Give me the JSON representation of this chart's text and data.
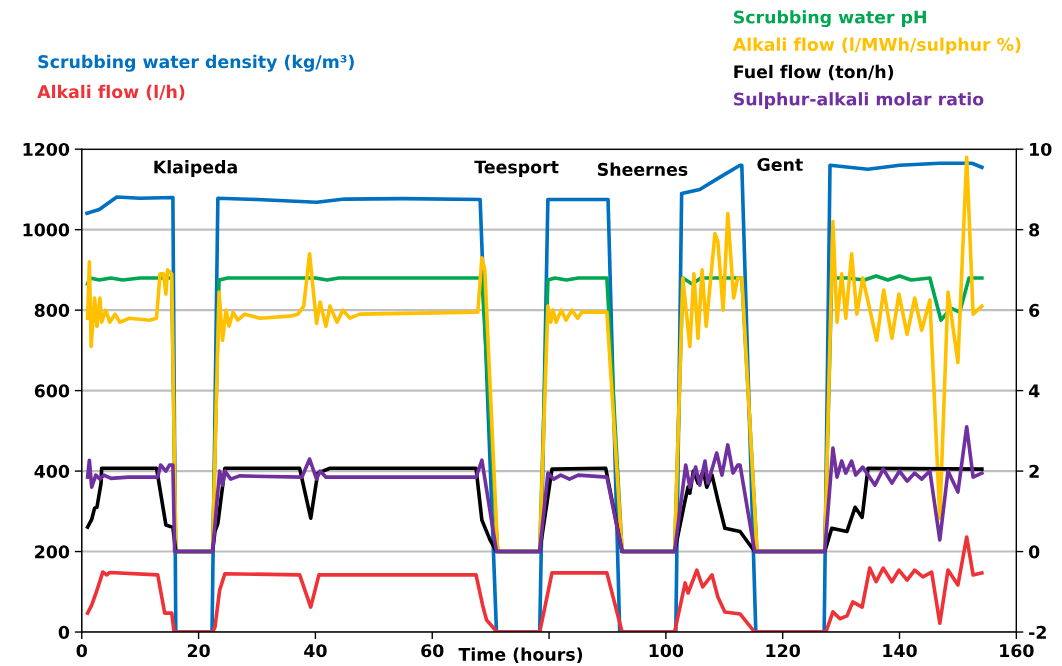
{
  "chart_data": {
    "type": "line",
    "xlabel": "Time (hours)",
    "xlim": [
      0,
      160
    ],
    "xticks": [
      0,
      20,
      40,
      60,
      {
        "value": 80,
        "label": null
      },
      100,
      120,
      140,
      160
    ],
    "ylim": [
      0,
      1200
    ],
    "yticks": [
      0,
      200,
      400,
      600,
      800,
      1000,
      1200
    ],
    "y2lim": [
      -2,
      10
    ],
    "y2ticks": [
      -2,
      0,
      2,
      4,
      6,
      8,
      10
    ],
    "grid": "y",
    "line_style": "solid",
    "marker": "none",
    "annotations": [
      "Klaipeda",
      "Teesport",
      "Sheernes",
      "Gent"
    ],
    "series": [
      {
        "name": "Scrubbing water density (kg/m³)",
        "color": "#0070c0",
        "axis": "y",
        "x": [
          0.9,
          3.0,
          6.0,
          10,
          15.6,
          16.1,
          22.3,
          23.3,
          30,
          40.2,
          45,
          55,
          68.2,
          71.0,
          78.4,
          79.8,
          90.1,
          92.1,
          101.7,
          102.7,
          105.8,
          109.2,
          112.7,
          113.0,
          115.4,
          127.1,
          128.1,
          134.6,
          140,
          146.9,
          152.4,
          154.1
        ],
        "values": [
          1041,
          1050,
          1081,
          1078,
          1080,
          0,
          0,
          1078,
          1075,
          1068,
          1076,
          1077,
          1075,
          0,
          0,
          1075,
          1075,
          0,
          0,
          1090,
          1100,
          1130,
          1160,
          1160,
          0,
          0,
          1160,
          1150,
          1160,
          1165,
          1165,
          1155
        ]
      },
      {
        "name": "Alkali flow (l/h)",
        "color": "#ee3338",
        "axis": "y",
        "x": [
          1.0,
          1.7,
          2.6,
          3.6,
          4.3,
          4.8,
          13.0,
          14.2,
          15.4,
          15.8,
          22.4,
          22.8,
          23.6,
          24.5,
          37.3,
          39.2,
          40.6,
          67.5,
          68.7,
          69.3,
          71.1,
          78.4,
          80.5,
          89.9,
          92.5,
          101.5,
          103.3,
          103.8,
          105.3,
          106.3,
          107.9,
          108.9,
          110.1,
          112.7,
          115.2,
          127.4,
          128.6,
          129.8,
          131.0,
          132.0,
          133.6,
          134.9,
          136.0,
          137.2,
          138.7,
          139.9,
          141.3,
          142.6,
          144.0,
          145.5,
          146.9,
          148.3,
          150.0,
          151.5,
          152.6,
          154.1
        ],
        "values": [
          47,
          67,
          104,
          149,
          142,
          148,
          142,
          47,
          47,
          0,
          0,
          12,
          104,
          145,
          142,
          62,
          142,
          142,
          62,
          30,
          0,
          0,
          147,
          147,
          0,
          0,
          122,
          97,
          154,
          112,
          142,
          87,
          50,
          45,
          0,
          0,
          50,
          33,
          40,
          75,
          62,
          159,
          125,
          159,
          125,
          154,
          129,
          154,
          137,
          149,
          22,
          154,
          117,
          236,
          142,
          147
        ]
      },
      {
        "name": "Scrubbing water pH",
        "color": "#00a650",
        "axis": "y2",
        "x": [
          1.0,
          1.4,
          3,
          5,
          7,
          10,
          15.4,
          16.1,
          22.4,
          23.5,
          25,
          30,
          40,
          42,
          44,
          68.5,
          71.2,
          78.4,
          79.8,
          81,
          83,
          85,
          89.9,
          92.5,
          101.5,
          102.9,
          104.5,
          106,
          113,
          115.6,
          127.2,
          128.4,
          131,
          134,
          136,
          138,
          140,
          142,
          145.2,
          147.1,
          148.8,
          150.3,
          151.9,
          154.1
        ],
        "values": [
          6.65,
          6.8,
          6.75,
          6.8,
          6.75,
          6.8,
          6.8,
          0,
          0,
          6.75,
          6.8,
          6.8,
          6.8,
          6.75,
          6.8,
          6.8,
          0,
          0,
          6.75,
          6.8,
          6.75,
          6.8,
          6.8,
          0,
          0,
          6.8,
          6.65,
          6.8,
          6.8,
          0,
          0,
          6.8,
          6.8,
          6.75,
          6.85,
          6.75,
          6.85,
          6.75,
          6.8,
          5.75,
          6.05,
          5.95,
          6.8,
          6.8
        ]
      },
      {
        "name": "Alkali flow (l/MWh/sulphur %)",
        "color": "#ffc000",
        "axis": "y2",
        "x": [
          1.0,
          1.3,
          1.6,
          2.2,
          2.6,
          3.1,
          3.4,
          4.1,
          4.8,
          5.7,
          6.5,
          8.2,
          11.6,
          12.8,
          13.4,
          14.0,
          14.4,
          14.7,
          15.4,
          16.1,
          22.4,
          23.5,
          24.1,
          24.7,
          25.2,
          25.9,
          26.7,
          27.9,
          30.5,
          35.6,
          37,
          38,
          39,
          40.2,
          40.8,
          41.8,
          42.5,
          43.7,
          44.7,
          45.9,
          47.6,
          67.8,
          68.5,
          69.0,
          71.2,
          78.4,
          79.8,
          80.3,
          80.7,
          81.2,
          82.1,
          82.9,
          83.9,
          84.9,
          85.6,
          89.9,
          92.5,
          101.5,
          102.9,
          104.1,
          104.8,
          105.5,
          106.2,
          106.9,
          108.4,
          108.9,
          109.8,
          110.6,
          111.6,
          112.3,
          113.0,
          115.6,
          127.2,
          128.6,
          129.3,
          130.1,
          130.8,
          131.8,
          132.7,
          133.7,
          136.1,
          137.3,
          138.7,
          139.9,
          141.3,
          142.6,
          143.8,
          145.2,
          146.9,
          148.3,
          150.0,
          151.5,
          152.6,
          154.1
        ],
        "values": [
          5.8,
          7.2,
          5.1,
          6.3,
          5.6,
          6.3,
          5.7,
          6.0,
          5.7,
          5.9,
          5.7,
          5.8,
          5.75,
          5.8,
          6.9,
          6.9,
          6.4,
          7.0,
          6.9,
          0,
          0,
          6.45,
          5.25,
          6.0,
          5.6,
          5.95,
          5.75,
          5.9,
          5.8,
          5.85,
          5.9,
          6.1,
          7.4,
          5.67,
          6.2,
          5.6,
          6.1,
          5.7,
          6.0,
          5.8,
          5.9,
          5.95,
          7.3,
          7.0,
          0,
          0,
          6.1,
          5.7,
          6.0,
          5.7,
          6.0,
          5.75,
          6.0,
          5.8,
          5.95,
          5.95,
          0,
          0,
          6.8,
          5.1,
          6.9,
          5.3,
          7.0,
          5.6,
          7.9,
          7.7,
          6.0,
          8.4,
          6.3,
          6.8,
          6.8,
          0,
          0,
          8.2,
          5.7,
          6.9,
          5.8,
          7.4,
          5.9,
          6.8,
          5.25,
          6.5,
          5.3,
          6.4,
          5.4,
          6.3,
          5.5,
          6.25,
          0.83,
          6.45,
          4.7,
          9.8,
          5.9,
          6.1
        ]
      },
      {
        "name": "Fuel flow (ton/h)",
        "color": "#000000",
        "axis": "y2",
        "x": [
          1.0,
          1.7,
          2.2,
          2.6,
          3.3,
          3.4,
          12.8,
          14.4,
          15.6,
          16.1,
          22.4,
          22.8,
          23.3,
          24.5,
          37.3,
          39.2,
          40.4,
          42.5,
          67.5,
          68.5,
          69.9,
          71.0,
          78.4,
          80.5,
          89.7,
          92.5,
          101.5,
          103.3,
          103.8,
          104.1,
          104.7,
          105.5,
          106.4,
          107.0,
          107.9,
          108.9,
          110.1,
          112.7,
          115.2,
          127.2,
          128.4,
          131.0,
          132.4,
          133.6,
          134.6,
          154.1
        ],
        "values": [
          0.61,
          0.8,
          1.08,
          1.1,
          1.7,
          2.07,
          2.07,
          0.66,
          0.6,
          0,
          0,
          0.5,
          0.7,
          2.07,
          2.07,
          0.83,
          1.95,
          2.07,
          2.07,
          0.78,
          0.29,
          0,
          0,
          2.05,
          2.07,
          0,
          0,
          1.28,
          1.6,
          1.45,
          2.0,
          1.7,
          2.0,
          1.6,
          1.9,
          1.28,
          0.58,
          0.5,
          0,
          0,
          0.58,
          0.5,
          1.1,
          0.85,
          2.07,
          2.05
        ]
      },
      {
        "name": "Sulphur-alkali molar ratio",
        "color": "#7030a0",
        "axis": "y2",
        "x": [
          1.0,
          1.3,
          1.7,
          2.4,
          3.1,
          3.8,
          5,
          8,
          13.0,
          13.5,
          14.4,
          15.0,
          15.6,
          15.9,
          22.4,
          23.6,
          24.1,
          24.5,
          25.5,
          27,
          37.7,
          39.0,
          40.2,
          40.8,
          41.8,
          67.5,
          68.5,
          71.0,
          78.4,
          79.8,
          80.8,
          82,
          83.5,
          85,
          89.9,
          92.5,
          101.5,
          103.4,
          104.1,
          105.1,
          105.8,
          106.7,
          107.2,
          108.7,
          109.6,
          110.6,
          111.5,
          112.3,
          112.7,
          115.2,
          127.2,
          128.6,
          129.3,
          130.1,
          130.8,
          131.8,
          132.5,
          133.7,
          135.8,
          137.2,
          138.7,
          140.0,
          141.3,
          142.6,
          143.8,
          145.2,
          146.9,
          148.3,
          150.0,
          151.5,
          152.6,
          154.1
        ],
        "values": [
          1.85,
          2.27,
          1.6,
          1.9,
          1.8,
          1.9,
          1.82,
          1.85,
          1.85,
          2.15,
          2.0,
          2.15,
          2.15,
          0,
          0,
          2.0,
          1.65,
          2.0,
          1.8,
          1.88,
          1.85,
          2.3,
          1.8,
          2.0,
          1.85,
          1.85,
          2.27,
          0,
          0,
          1.95,
          1.8,
          1.9,
          1.8,
          1.9,
          1.85,
          0,
          0,
          2.15,
          1.6,
          2.1,
          1.65,
          2.25,
          1.7,
          2.45,
          1.9,
          2.65,
          1.95,
          2.15,
          2.15,
          0,
          0,
          2.57,
          1.85,
          2.25,
          1.95,
          2.25,
          1.9,
          2.1,
          1.65,
          2.05,
          1.7,
          2.0,
          1.75,
          1.95,
          1.8,
          2.0,
          0.29,
          2.0,
          1.48,
          3.1,
          1.85,
          1.95
        ]
      }
    ]
  }
}
